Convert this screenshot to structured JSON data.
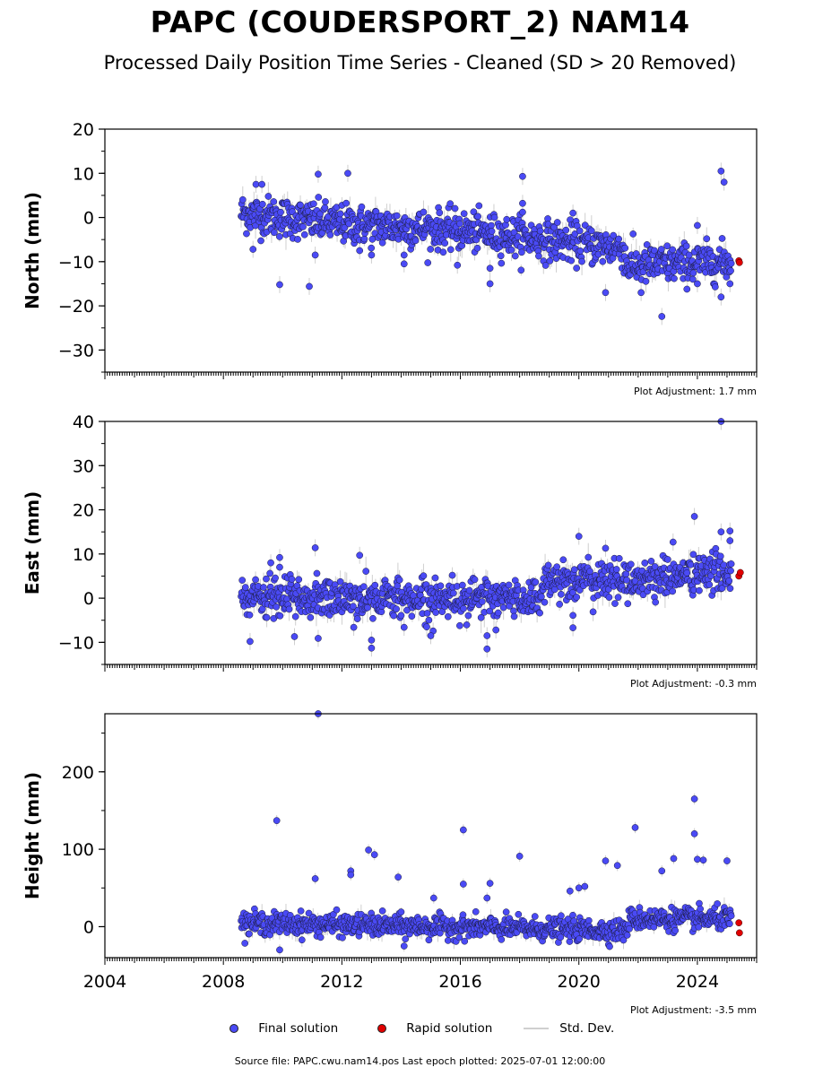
{
  "title": "PAPC (COUDERSPORT_2) NAM14",
  "subtitle": "Processed Daily Position Time Series - Cleaned (SD > 20 Removed)",
  "legend": {
    "final": "Final solution",
    "rapid": "Rapid solution",
    "std": "Std. Dev."
  },
  "footer": "Source file: PAPC.cwu.nam14.pos  Last epoch plotted: 2025-07-01 12:00:00",
  "colors": {
    "final": "#4a4af5",
    "rapid": "#e00000",
    "std": "#cfcfcf"
  },
  "chart_data": [
    {
      "type": "scatter",
      "ylabel": "North (mm)",
      "adjustment": "Plot Adjustment: 1.7 mm",
      "xlim": [
        2004,
        2026
      ],
      "ylim": [
        -35,
        20
      ],
      "yticks": [
        20,
        10,
        0,
        -10,
        -20,
        -30
      ],
      "ytick_labels": [
        "20",
        "10",
        "0",
        "−10",
        "−20",
        "−30"
      ],
      "final_trend": [
        [
          2008.6,
          1
        ],
        [
          2012,
          -1.5
        ],
        [
          2016,
          -3
        ],
        [
          2018.8,
          -5
        ],
        [
          2021.5,
          -7
        ],
        [
          2021.6,
          -11
        ],
        [
          2025,
          -10
        ]
      ],
      "outliers": [
        [
          2009.1,
          7.5
        ],
        [
          2009.3,
          7.5
        ],
        [
          2009.0,
          -7.2
        ],
        [
          2009.9,
          -15.2
        ],
        [
          2010.9,
          -15.6
        ],
        [
          2011.2,
          9.8
        ],
        [
          2011.1,
          -8.5
        ],
        [
          2012.2,
          10
        ],
        [
          2012.6,
          -7.5
        ],
        [
          2013.0,
          -8.5
        ],
        [
          2014.1,
          -8.5
        ],
        [
          2014.1,
          -10.5
        ],
        [
          2015.9,
          -10.8
        ],
        [
          2017.0,
          -11.5
        ],
        [
          2017.0,
          -15
        ],
        [
          2018.1,
          9.3
        ],
        [
          2018.1,
          3.2
        ],
        [
          2018.1,
          1.2
        ],
        [
          2019.8,
          1
        ],
        [
          2020.9,
          -17
        ],
        [
          2022.1,
          -17
        ],
        [
          2022.8,
          -22.4
        ],
        [
          2024.0,
          -1.8
        ],
        [
          2024.0,
          -15
        ],
        [
          2024.8,
          10.5
        ],
        [
          2024.9,
          8
        ],
        [
          2024.8,
          -18
        ],
        [
          2025.1,
          -15
        ]
      ],
      "rapid": [
        [
          2025.4,
          -9.8
        ],
        [
          2025.42,
          -10.2
        ]
      ]
    },
    {
      "type": "scatter",
      "ylabel": "East (mm)",
      "adjustment": "Plot Adjustment: -0.3 mm",
      "xlim": [
        2004,
        2026
      ],
      "ylim": [
        -15,
        40
      ],
      "yticks": [
        40,
        30,
        20,
        10,
        0,
        -10
      ],
      "ytick_labels": [
        "40",
        "30",
        "20",
        "10",
        "0",
        "−10"
      ],
      "final_trend": [
        [
          2008.6,
          0
        ],
        [
          2018.7,
          0
        ],
        [
          2018.8,
          4
        ],
        [
          2021.5,
          4
        ],
        [
          2025,
          6
        ]
      ],
      "outliers": [
        [
          2008.9,
          -9.8
        ],
        [
          2009.6,
          8
        ],
        [
          2009.9,
          9.2
        ],
        [
          2009.9,
          7
        ],
        [
          2010.4,
          -8.7
        ],
        [
          2011.1,
          11.4
        ],
        [
          2011.2,
          -9.1
        ],
        [
          2012.6,
          9.7
        ],
        [
          2012.4,
          -6.6
        ],
        [
          2013.0,
          -9.5
        ],
        [
          2013.0,
          -11.3
        ],
        [
          2014.1,
          -6.6
        ],
        [
          2015.0,
          -8.5
        ],
        [
          2016.9,
          -8.5
        ],
        [
          2016.9,
          -11.5
        ],
        [
          2017.2,
          -7.2
        ],
        [
          2019.8,
          -3.9
        ],
        [
          2019.8,
          -6.7
        ],
        [
          2020.0,
          14
        ],
        [
          2020.9,
          11.3
        ],
        [
          2023.9,
          18.5
        ],
        [
          2024.8,
          40
        ],
        [
          2024.8,
          15
        ],
        [
          2025.1,
          15.2
        ],
        [
          2025.1,
          13
        ]
      ],
      "rapid": [
        [
          2025.4,
          5
        ],
        [
          2025.45,
          5.8
        ]
      ]
    },
    {
      "type": "scatter",
      "ylabel": "Height (mm)",
      "adjustment": "Plot Adjustment: -3.5 mm",
      "xlim": [
        2004,
        2026
      ],
      "ylim": [
        -40,
        275
      ],
      "xticks": [
        2004,
        2008,
        2012,
        2016,
        2020,
        2024
      ],
      "yticks": [
        200,
        100,
        0
      ],
      "ytick_labels": [
        "200",
        "100",
        "0"
      ],
      "final_trend": [
        [
          2008.6,
          5
        ],
        [
          2021.6,
          -5
        ],
        [
          2021.7,
          10
        ],
        [
          2025,
          10
        ]
      ],
      "outliers": [
        [
          2009.8,
          137
        ],
        [
          2009.9,
          -30
        ],
        [
          2011.2,
          275
        ],
        [
          2011.1,
          62
        ],
        [
          2012.3,
          72
        ],
        [
          2012.3,
          67
        ],
        [
          2012.9,
          99
        ],
        [
          2013.1,
          93
        ],
        [
          2013.9,
          64
        ],
        [
          2014.1,
          -25
        ],
        [
          2015.1,
          37
        ],
        [
          2016.1,
          125
        ],
        [
          2016.1,
          55
        ],
        [
          2016.9,
          37
        ],
        [
          2017.0,
          56
        ],
        [
          2018.0,
          91
        ],
        [
          2019.7,
          46
        ],
        [
          2020.0,
          50
        ],
        [
          2020.2,
          52
        ],
        [
          2020.9,
          85
        ],
        [
          2021.3,
          79
        ],
        [
          2021.9,
          128
        ],
        [
          2022.8,
          72
        ],
        [
          2023.2,
          88
        ],
        [
          2023.9,
          165
        ],
        [
          2023.9,
          120
        ],
        [
          2024.0,
          87
        ],
        [
          2024.2,
          86
        ],
        [
          2025.0,
          85
        ]
      ],
      "rapid": [
        [
          2025.4,
          5
        ],
        [
          2025.42,
          -8
        ]
      ]
    }
  ]
}
